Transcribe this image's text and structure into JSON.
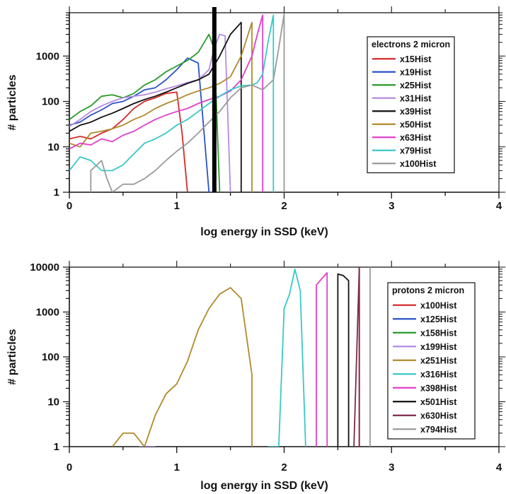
{
  "chart_data": [
    {
      "type": "line",
      "ylog": true,
      "xlabel": "log energy in SSD (keV)",
      "ylabel": "# particles",
      "xlim": [
        0,
        4
      ],
      "ylim": [
        1,
        9000
      ],
      "xticks": [
        "0",
        "1",
        "2",
        "3",
        "4"
      ],
      "yticks": [
        {
          "value": 1,
          "label": "1"
        },
        {
          "value": 10,
          "label": "10"
        },
        {
          "value": 100,
          "label": "100"
        },
        {
          "value": 1000,
          "label": "1000"
        }
      ],
      "legend_title": "electrons 2 micron",
      "legend_position": "right",
      "grid": false,
      "markers": [
        {
          "x": 1.35,
          "label": "",
          "color": "#000000"
        }
      ],
      "series": [
        {
          "name": "x15Hist",
          "color": "#d42a2a",
          "x": [
            0,
            0.1,
            0.2,
            0.3,
            0.4,
            0.5,
            0.6,
            0.7,
            0.8,
            0.9,
            1.0,
            1.05,
            1.1,
            1.1
          ],
          "y": [
            15,
            17,
            15,
            20,
            25,
            40,
            70,
            100,
            120,
            150,
            160,
            20,
            1,
            1
          ]
        },
        {
          "name": "x19Hist",
          "color": "#2a52c8",
          "x": [
            0,
            0.1,
            0.2,
            0.3,
            0.4,
            0.5,
            0.6,
            0.7,
            0.8,
            0.9,
            1.0,
            1.1,
            1.2,
            1.3,
            1.35
          ],
          "y": [
            30,
            35,
            50,
            65,
            90,
            100,
            130,
            180,
            200,
            300,
            500,
            900,
            700,
            1,
            1
          ]
        },
        {
          "name": "x25Hist",
          "color": "#2a9a2a",
          "x": [
            0,
            0.1,
            0.2,
            0.3,
            0.4,
            0.5,
            0.6,
            0.7,
            0.8,
            0.9,
            1.0,
            1.1,
            1.2,
            1.3,
            1.35,
            1.4,
            1.4
          ],
          "y": [
            40,
            60,
            80,
            130,
            140,
            120,
            150,
            230,
            300,
            450,
            600,
            800,
            1200,
            3000,
            1400,
            1,
            1
          ]
        },
        {
          "name": "x31Hist",
          "color": "#b68ae0",
          "x": [
            0,
            0.1,
            0.2,
            0.3,
            0.4,
            0.5,
            0.6,
            0.7,
            0.8,
            0.9,
            1.0,
            1.1,
            1.2,
            1.3,
            1.35,
            1.4,
            1.45,
            1.5,
            1.5
          ],
          "y": [
            28,
            40,
            60,
            80,
            100,
            120,
            130,
            140,
            160,
            190,
            220,
            260,
            300,
            500,
            1500,
            3000,
            2800,
            1,
            1
          ]
        },
        {
          "name": "x39Hist",
          "color": "#111111",
          "x": [
            0,
            0.1,
            0.2,
            0.3,
            0.4,
            0.5,
            0.6,
            0.7,
            0.8,
            0.9,
            1.0,
            1.1,
            1.2,
            1.3,
            1.4,
            1.5,
            1.6,
            1.6
          ],
          "y": [
            22,
            30,
            35,
            45,
            55,
            70,
            90,
            110,
            130,
            160,
            200,
            250,
            300,
            400,
            1000,
            3000,
            5500,
            1
          ]
        },
        {
          "name": "x50Hist",
          "color": "#b08a2a",
          "x": [
            0,
            0.1,
            0.2,
            0.3,
            0.4,
            0.5,
            0.6,
            0.7,
            0.8,
            0.9,
            1.0,
            1.1,
            1.2,
            1.3,
            1.4,
            1.5,
            1.6,
            1.7,
            1.7
          ],
          "y": [
            12,
            10,
            20,
            22,
            25,
            30,
            40,
            50,
            70,
            90,
            110,
            140,
            170,
            200,
            250,
            350,
            1000,
            5500,
            1
          ]
        },
        {
          "name": "x63Hist",
          "color": "#e040c8",
          "x": [
            0,
            0.1,
            0.2,
            0.3,
            0.4,
            0.5,
            0.6,
            0.7,
            0.8,
            0.9,
            1.0,
            1.1,
            1.2,
            1.3,
            1.4,
            1.5,
            1.6,
            1.7,
            1.75,
            1.8,
            1.8
          ],
          "y": [
            9,
            12,
            11,
            15,
            13,
            18,
            22,
            30,
            40,
            50,
            60,
            70,
            90,
            110,
            130,
            170,
            300,
            1000,
            3000,
            8000,
            1
          ]
        },
        {
          "name": "x79Hist",
          "color": "#38c8c8",
          "x": [
            0,
            0.1,
            0.2,
            0.3,
            0.4,
            0.5,
            0.6,
            0.7,
            0.8,
            0.9,
            1.0,
            1.1,
            1.2,
            1.3,
            1.4,
            1.5,
            1.6,
            1.7,
            1.75,
            1.8,
            1.85,
            1.9,
            1.9
          ],
          "y": [
            3,
            6,
            5,
            3,
            3,
            4,
            7,
            12,
            15,
            20,
            30,
            40,
            60,
            90,
            130,
            180,
            220,
            230,
            260,
            400,
            2000,
            8000,
            1
          ]
        },
        {
          "name": "x100Hist",
          "color": "#9a9a9a",
          "x": [
            0.2,
            0.2,
            0.3,
            0.35,
            0.4,
            0.5,
            0.6,
            0.7,
            0.8,
            0.9,
            1.0,
            1.1,
            1.2,
            1.3,
            1.4,
            1.5,
            1.6,
            1.7,
            1.8,
            1.9,
            1.95,
            2.0,
            2.0
          ],
          "y": [
            1,
            3,
            5,
            2,
            1,
            1.5,
            1.5,
            2,
            3,
            5,
            8,
            12,
            20,
            35,
            60,
            120,
            200,
            230,
            180,
            300,
            1500,
            8500,
            1
          ]
        }
      ]
    },
    {
      "type": "line",
      "ylog": true,
      "xlabel": "log energy in SSD (keV)",
      "ylabel": "# particles",
      "xlim": [
        0,
        4
      ],
      "ylim": [
        1,
        10000
      ],
      "xticks": [
        "0",
        "1",
        "2",
        "3",
        "4"
      ],
      "yticks": [
        {
          "value": 1,
          "label": "1"
        },
        {
          "value": 10,
          "label": "10"
        },
        {
          "value": 100,
          "label": "100"
        },
        {
          "value": 1000,
          "label": "1000"
        },
        {
          "value": 10000,
          "label": "10000"
        }
      ],
      "legend_title": "protons 2 micron",
      "legend_position": "right",
      "grid": false,
      "series": [
        {
          "name": "x100Hist",
          "color": "#d42a2a",
          "x": [
            2.7,
            2.7,
            2.7
          ],
          "y": [
            1,
            10000,
            1
          ]
        },
        {
          "name": "x125Hist",
          "color": "#2a52c8",
          "x": [
            0.7,
            0.8
          ],
          "y": [
            1,
            1
          ]
        },
        {
          "name": "x158Hist",
          "color": "#2a9a2a",
          "x": [],
          "y": []
        },
        {
          "name": "x199Hist",
          "color": "#b68ae0",
          "x": [
            0.65,
            0.8
          ],
          "y": [
            1,
            1
          ]
        },
        {
          "name": "x251Hist",
          "color": "#b08a2a",
          "x": [
            0.4,
            0.5,
            0.6,
            0.7,
            0.8,
            0.9,
            1.0,
            1.1,
            1.2,
            1.3,
            1.4,
            1.5,
            1.6,
            1.7,
            1.7
          ],
          "y": [
            1,
            2,
            2,
            1,
            5,
            15,
            25,
            80,
            400,
            1200,
            2500,
            3500,
            2000,
            40,
            1
          ]
        },
        {
          "name": "x316Hist",
          "color": "#38c8c8",
          "x": [
            1.85,
            1.95,
            2.0,
            2.05,
            2.1,
            2.15,
            2.2,
            2.2
          ],
          "y": [
            1,
            1,
            1200,
            2500,
            9000,
            3000,
            1,
            1
          ]
        },
        {
          "name": "x398Hist",
          "color": "#e040c8",
          "x": [
            2.3,
            2.3,
            2.35,
            2.4,
            2.4
          ],
          "y": [
            1,
            4000,
            5500,
            7500,
            1
          ]
        },
        {
          "name": "x501Hist",
          "color": "#111111",
          "x": [
            2.5,
            2.5,
            2.55,
            2.6,
            2.6
          ],
          "y": [
            1,
            7000,
            6500,
            5000,
            1
          ]
        },
        {
          "name": "x630Hist",
          "color": "#7a2a4a",
          "x": [
            2.65,
            2.7,
            2.7
          ],
          "y": [
            1,
            10000,
            1
          ]
        },
        {
          "name": "x794Hist",
          "color": "#9a9a9a",
          "x": [
            2.8,
            2.8
          ],
          "y": [
            1,
            10000
          ]
        }
      ]
    }
  ]
}
